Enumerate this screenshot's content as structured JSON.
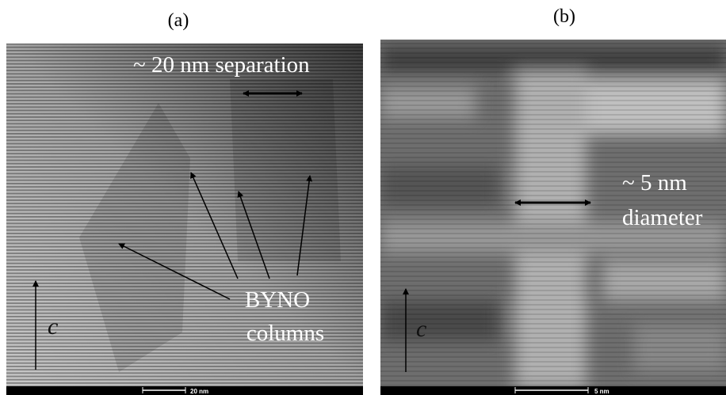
{
  "panels": [
    {
      "label": "(a)",
      "annotation": "~ 20 nm separation",
      "feature_line1": "BYNO",
      "feature_line2": "columns",
      "axis": "c",
      "scale_bar": "20 nm"
    },
    {
      "label": "(b)",
      "annotation_line1": "~ 5 nm",
      "annotation_line2": "diameter",
      "axis": "c",
      "scale_bar": "5 nm"
    }
  ]
}
